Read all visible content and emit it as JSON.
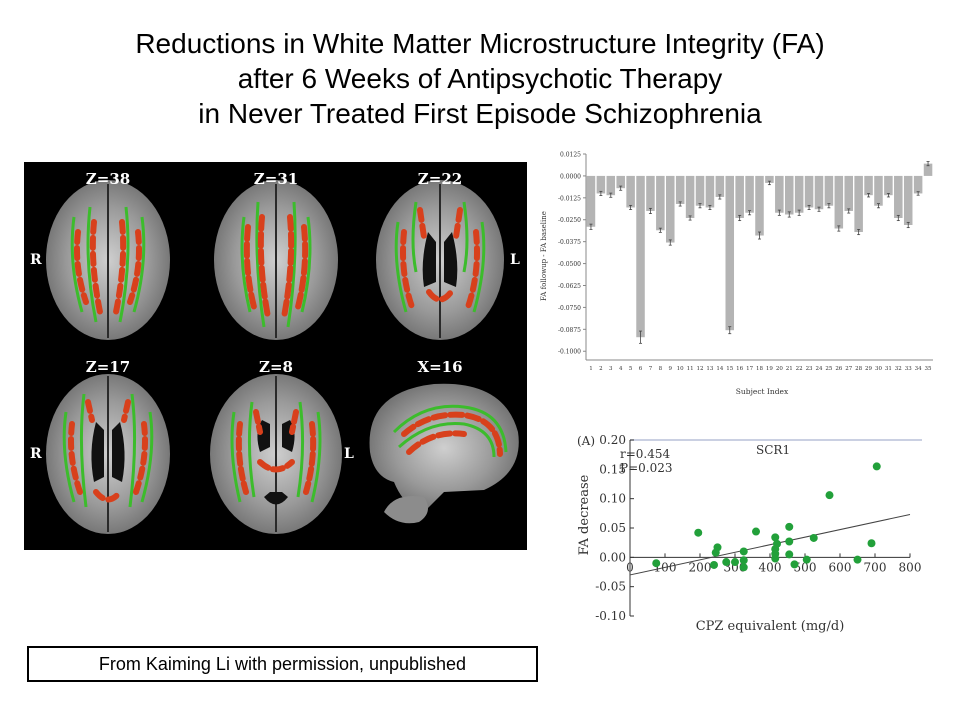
{
  "title_lines": [
    "Reductions in White Matter Microstructure Integrity (FA)",
    "after 6 Weeks of Antipsychotic Therapy",
    "in Never Treated First Episode Schizophrenia"
  ],
  "brain_panel": {
    "slices": [
      "Z=38",
      "Z=31",
      "Z=22",
      "Z=17",
      "Z=8",
      "X=16"
    ],
    "side_labels": [
      "R",
      "L",
      "R",
      "L"
    ],
    "colors": {
      "background": "#000000",
      "skeleton": "#3cbc2c",
      "reduction": "#d8401c"
    }
  },
  "credit": "From Kaiming Li with permission, unpublished",
  "chart_data": [
    {
      "type": "bar",
      "title": "",
      "xlabel": "Subject Index",
      "ylabel": "FA followup - FA baseline",
      "categories": [
        "1",
        "2",
        "3",
        "4",
        "5",
        "6",
        "7",
        "8",
        "9",
        "10",
        "11",
        "12",
        "13",
        "14",
        "15",
        "16",
        "17",
        "18",
        "19",
        "20",
        "21",
        "22",
        "23",
        "24",
        "25",
        "26",
        "27",
        "28",
        "29",
        "30",
        "31",
        "32",
        "33",
        "34",
        "35"
      ],
      "values": [
        -0.029,
        -0.01,
        -0.011,
        -0.007,
        -0.018,
        -0.092,
        -0.02,
        -0.031,
        -0.038,
        -0.016,
        -0.024,
        -0.017,
        -0.018,
        -0.012,
        -0.088,
        -0.024,
        -0.021,
        -0.034,
        -0.004,
        -0.021,
        -0.022,
        -0.021,
        -0.018,
        -0.019,
        -0.017,
        -0.03,
        -0.02,
        -0.032,
        -0.011,
        -0.017,
        -0.011,
        -0.024,
        -0.028,
        -0.01,
        0.007
      ],
      "errors": [
        0.0015,
        0.0012,
        0.0012,
        0.0012,
        0.0012,
        0.0035,
        0.0015,
        0.0012,
        0.0015,
        0.0012,
        0.0012,
        0.0012,
        0.0012,
        0.0012,
        0.002,
        0.0015,
        0.0012,
        0.002,
        0.001,
        0.0015,
        0.0015,
        0.0015,
        0.0012,
        0.0012,
        0.0012,
        0.0015,
        0.0012,
        0.0015,
        0.001,
        0.0012,
        0.001,
        0.0015,
        0.0015,
        0.001,
        0.0012
      ],
      "yticks": [
        "0.0125",
        "0.0000",
        "-0.0125",
        "-0.0250",
        "-0.0375",
        "-0.0500",
        "-0.0625",
        "-0.0750",
        "-0.0875",
        "-0.1000"
      ],
      "ylim": [
        -0.105,
        0.0125
      ],
      "bar_color": "#b4b4b4"
    },
    {
      "type": "scatter",
      "panel_label": "(A)",
      "series_label": "SCR1",
      "stats": [
        "r=0.454",
        "P=0.023"
      ],
      "xlabel": "CPZ equivalent (mg/d)",
      "ylabel": "FA decrease",
      "xticks": [
        "0",
        "100",
        "200",
        "300",
        "400",
        "500",
        "600",
        "700",
        "800"
      ],
      "yticks": [
        "0.20",
        "0.15",
        "0.10",
        "0.05",
        "0.00",
        "-0.05",
        "-0.10"
      ],
      "xlim": [
        0,
        800
      ],
      "ylim": [
        -0.1,
        0.2
      ],
      "points": [
        [
          75,
          -0.01
        ],
        [
          195,
          0.042
        ],
        [
          240,
          -0.013
        ],
        [
          245,
          0.008
        ],
        [
          250,
          0.017
        ],
        [
          275,
          -0.008
        ],
        [
          300,
          -0.008
        ],
        [
          325,
          -0.017
        ],
        [
          325,
          -0.005
        ],
        [
          325,
          0.01
        ],
        [
          360,
          0.044
        ],
        [
          415,
          0.034
        ],
        [
          415,
          0.014
        ],
        [
          415,
          0.006
        ],
        [
          415,
          -0.002
        ],
        [
          420,
          0.023
        ],
        [
          455,
          0.052
        ],
        [
          455,
          0.027
        ],
        [
          455,
          0.005
        ],
        [
          470,
          -0.012
        ],
        [
          505,
          -0.004
        ],
        [
          525,
          0.033
        ],
        [
          570,
          0.106
        ],
        [
          650,
          -0.004
        ],
        [
          690,
          0.024
        ],
        [
          705,
          0.155
        ]
      ],
      "regression": [
        [
          0,
          -0.03
        ],
        [
          800,
          0.073
        ]
      ],
      "point_color": "#22a03a"
    }
  ]
}
